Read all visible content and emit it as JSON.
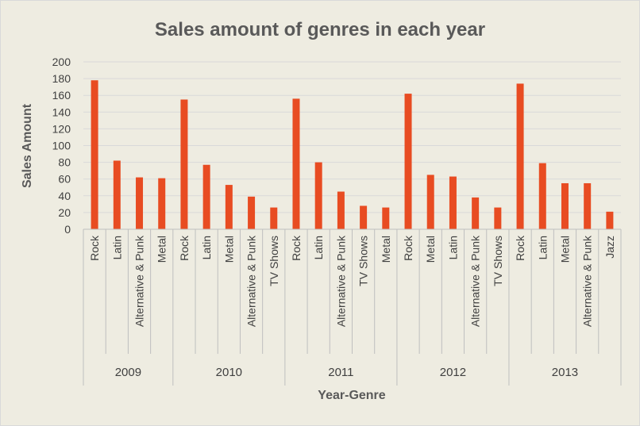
{
  "chart_data": {
    "type": "bar",
    "title": "Sales amount  of genres in each year",
    "xlabel": "Year-Genre",
    "ylabel": "Sales Amount",
    "ylim": [
      0,
      200
    ],
    "yticks": [
      0,
      20,
      40,
      60,
      80,
      100,
      120,
      140,
      160,
      180,
      200
    ],
    "grid": true,
    "legend": "none",
    "bar_color": "#e84c22",
    "groups": [
      {
        "label": "2009",
        "categories": [
          "Rock",
          "Latin",
          "Alternative & Punk",
          "Metal"
        ],
        "values": [
          178,
          82,
          62,
          61
        ]
      },
      {
        "label": "2010",
        "categories": [
          "Rock",
          "Latin",
          "Metal",
          "Alternative & Punk",
          "TV Shows"
        ],
        "values": [
          155,
          77,
          53,
          39,
          26
        ]
      },
      {
        "label": "2011",
        "categories": [
          "Rock",
          "Latin",
          "Alternative & Punk",
          "TV Shows",
          "Metal"
        ],
        "values": [
          156,
          80,
          45,
          28,
          26
        ]
      },
      {
        "label": "2012",
        "categories": [
          "Rock",
          "Metal",
          "Latin",
          "Alternative & Punk",
          "TV Shows"
        ],
        "values": [
          162,
          65,
          63,
          38,
          26
        ]
      },
      {
        "label": "2013",
        "categories": [
          "Rock",
          "Latin",
          "Metal",
          "Alternative & Punk",
          "Jazz"
        ],
        "values": [
          174,
          79,
          55,
          55,
          21
        ]
      }
    ]
  }
}
